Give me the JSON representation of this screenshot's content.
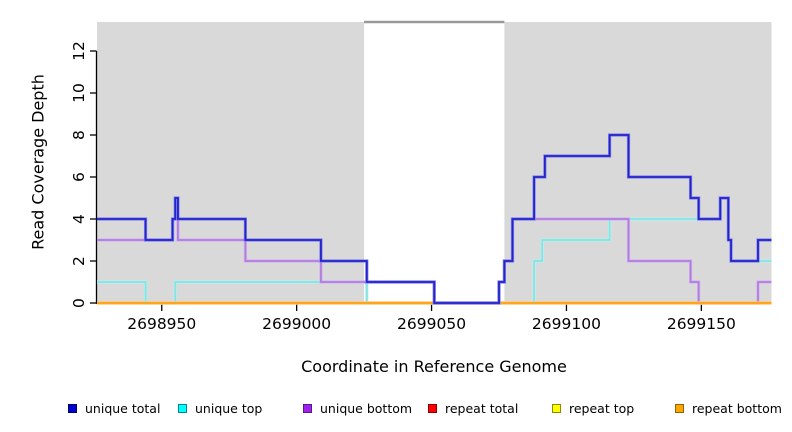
{
  "chart_data": {
    "type": "step",
    "title": "",
    "xlabel": "Coordinate in Reference Genome",
    "ylabel": "Read Coverage Depth",
    "xlim": [
      2698926,
      2699176
    ],
    "ylim": [
      0,
      13.4
    ],
    "x_ticks": [
      2698950,
      2699000,
      2699050,
      2699100,
      2699150
    ],
    "y_ticks": [
      0,
      2,
      4,
      6,
      8,
      10,
      12
    ],
    "grid": "off",
    "panel_background": "#d9d9d9",
    "highlight_band": {
      "x_start": 2699025,
      "x_end": 2699077,
      "color": "#ffffff",
      "top_border_color": "#999999"
    },
    "legend_position": "bottom-horizontal",
    "draw_order": [
      "repeat total",
      "repeat top",
      "unique top",
      "unique bottom",
      "repeat bottom",
      "unique total"
    ],
    "series": [
      {
        "name": "unique total",
        "line_color": "#2323cd",
        "halo_color": "#8585e6",
        "points": [
          [
            2698926,
            4
          ],
          [
            2698944,
            3
          ],
          [
            2698954,
            4
          ],
          [
            2698955,
            5
          ],
          [
            2698956,
            4
          ],
          [
            2698981,
            3
          ],
          [
            2699009,
            2
          ],
          [
            2699026,
            1
          ],
          [
            2699051,
            0
          ],
          [
            2699075,
            1
          ],
          [
            2699077,
            2
          ],
          [
            2699080,
            4
          ],
          [
            2699088,
            6
          ],
          [
            2699092,
            7
          ],
          [
            2699116,
            8
          ],
          [
            2699123,
            6
          ],
          [
            2699146,
            5
          ],
          [
            2699149,
            4
          ],
          [
            2699157,
            5
          ],
          [
            2699160,
            3
          ],
          [
            2699161,
            2
          ],
          [
            2699171,
            3
          ],
          [
            2699176,
            3
          ]
        ]
      },
      {
        "name": "unique top",
        "line_color": "#84e3e3",
        "halo_color": "#bdf0ef",
        "points": [
          [
            2698926,
            1
          ],
          [
            2698944,
            0
          ],
          [
            2698955,
            1
          ],
          [
            2699026,
            0
          ],
          [
            2699088,
            2
          ],
          [
            2699091,
            3
          ],
          [
            2699116,
            4
          ],
          [
            2699157,
            5
          ],
          [
            2699160,
            3
          ],
          [
            2699161,
            2
          ],
          [
            2699176,
            2
          ]
        ]
      },
      {
        "name": "unique bottom",
        "line_color": "#b07ede",
        "halo_color": "#d4b4ef",
        "points": [
          [
            2698926,
            3
          ],
          [
            2698954,
            4
          ],
          [
            2698956,
            3
          ],
          [
            2698981,
            2
          ],
          [
            2699009,
            1
          ],
          [
            2699051,
            0
          ],
          [
            2699075,
            1
          ],
          [
            2699077,
            2
          ],
          [
            2699080,
            4
          ],
          [
            2699123,
            2
          ],
          [
            2699146,
            1
          ],
          [
            2699149,
            0
          ],
          [
            2699171,
            1
          ],
          [
            2699176,
            1
          ]
        ]
      },
      {
        "name": "repeat total",
        "line_color": "#e02020",
        "halo_color": "#f0a0a0",
        "points": [
          [
            2698926,
            0
          ],
          [
            2699176,
            0
          ]
        ]
      },
      {
        "name": "repeat top",
        "line_color": "#f5e93a",
        "halo_color": "#faf4a0",
        "points": [
          [
            2698926,
            0
          ],
          [
            2699176,
            0
          ]
        ]
      },
      {
        "name": "repeat bottom",
        "line_color": "#ff9f0e",
        "halo_color": "#ffc97e",
        "points": [
          [
            2698926,
            0
          ],
          [
            2699176,
            0
          ]
        ]
      }
    ]
  },
  "legend": {
    "items": [
      {
        "label": "unique total",
        "fill": "#0000cc",
        "border": "#00006e"
      },
      {
        "label": "unique top",
        "fill": "#00ffff",
        "border": "#00898b"
      },
      {
        "label": "unique bottom",
        "fill": "#a020f0",
        "border": "#551a8b"
      },
      {
        "label": "repeat total",
        "fill": "#ff0000",
        "border": "#8b0000"
      },
      {
        "label": "repeat top",
        "fill": "#ffff00",
        "border": "#8b8b00"
      },
      {
        "label": "repeat bottom",
        "fill": "#ffa500",
        "border": "#8b6508"
      }
    ]
  },
  "axes": {
    "x_label": "Coordinate in Reference Genome",
    "y_label": "Read Coverage Depth",
    "x_tick_labels": [
      "2698950",
      "2699000",
      "2699050",
      "2699100",
      "2699150"
    ],
    "y_tick_labels": [
      "0",
      "2",
      "4",
      "6",
      "8",
      "10",
      "12"
    ]
  }
}
